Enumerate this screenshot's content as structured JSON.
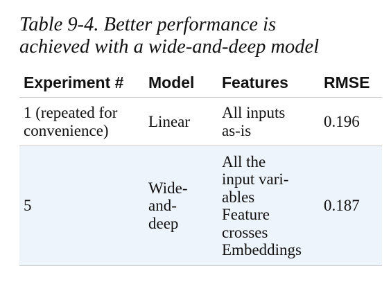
{
  "caption": {
    "line1": "Table 9-4. Better performance is",
    "line2": "achieved with a wide-and-deep model"
  },
  "table": {
    "headers": [
      "Experiment #",
      "Model",
      "Features",
      "RMSE"
    ],
    "rows": [
      {
        "experiment": [
          "1 (repeated for",
          "convenience)"
        ],
        "model": [
          "Linear"
        ],
        "features": [
          "All inputs",
          "as-is"
        ],
        "rmse": "0.196"
      },
      {
        "experiment": [
          "5"
        ],
        "model": [
          "Wide-",
          "and-",
          "deep"
        ],
        "features": [
          "All the",
          "input vari-",
          "ables",
          "Feature",
          "crosses",
          "Embeddings"
        ],
        "rmse": "0.187"
      }
    ]
  },
  "colors": {
    "highlight_row": "#eef4fb",
    "rule": "#c9c9c9",
    "text": "#111111"
  }
}
